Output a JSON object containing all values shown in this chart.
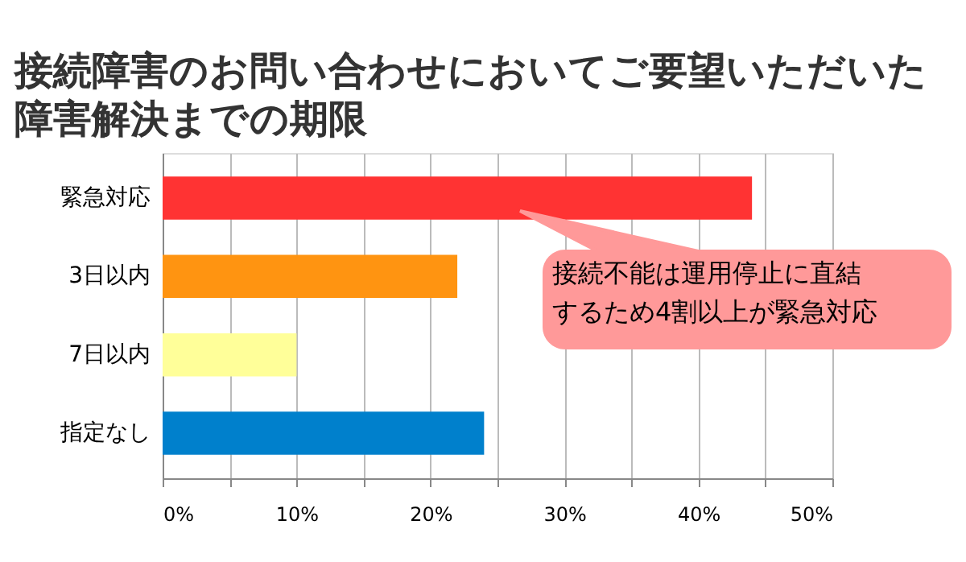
{
  "chart_data": {
    "type": "bar",
    "orientation": "horizontal",
    "title": "接続障害のお問い合わせにおいてご要望いただいた障害解決までの期限",
    "categories": [
      "緊急対応",
      "3日以内",
      "7日以内",
      "指定なし"
    ],
    "values": [
      44,
      22,
      10,
      24
    ],
    "colors": [
      "#ff3333",
      "#ff9411",
      "#ffff99",
      "#0080cc"
    ],
    "xlim": [
      0,
      50
    ],
    "xticks": [
      {
        "value": 0,
        "label": "0%"
      },
      {
        "value": 5,
        "label": null
      },
      {
        "value": 10,
        "label": "10%"
      },
      {
        "value": 15,
        "label": null
      },
      {
        "value": 20,
        "label": "20%"
      },
      {
        "value": 25,
        "label": null
      },
      {
        "value": 30,
        "label": "30%"
      },
      {
        "value": 35,
        "label": null
      },
      {
        "value": 40,
        "label": "40%"
      },
      {
        "value": 45,
        "label": null
      },
      {
        "value": 50,
        "label": "50%"
      }
    ],
    "grid": "x",
    "annotations": [
      "接続不能は運用停止に直結するため4割以上が緊急対応"
    ]
  }
}
